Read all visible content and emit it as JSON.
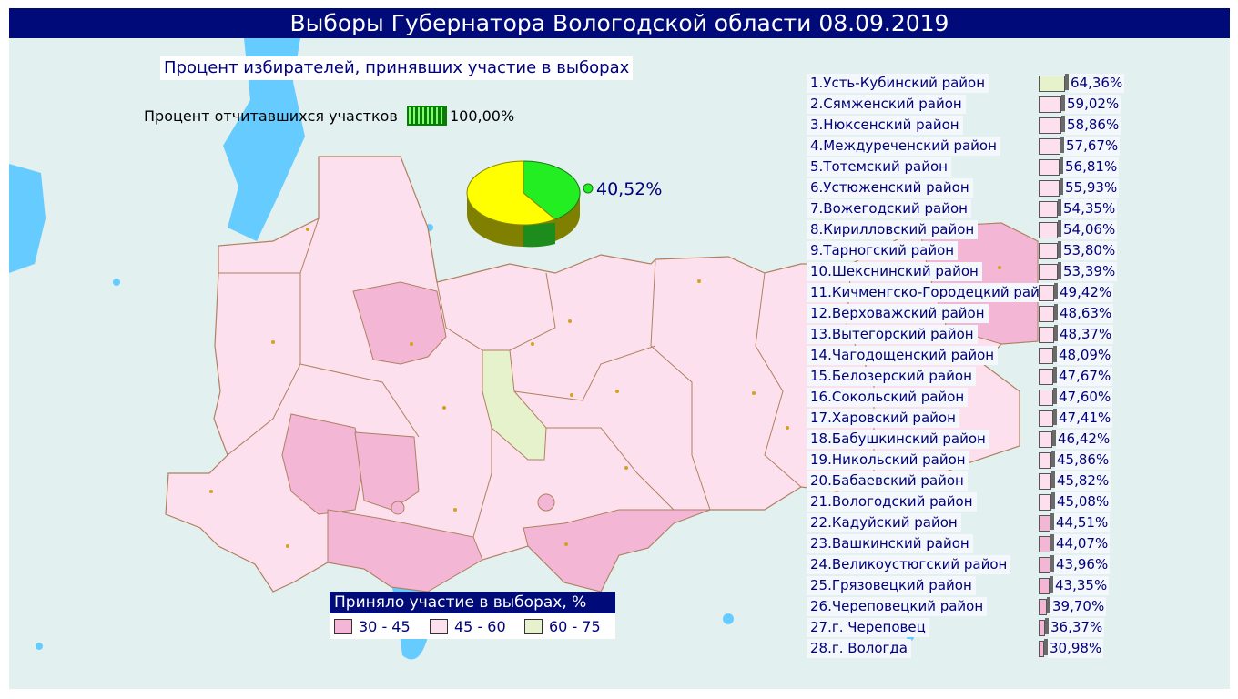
{
  "title": "Выборы Губернатора Вологодской области 08.09.2019",
  "subtitle": "Процент избирателей, принявших участие в выборах",
  "reporting": {
    "label": "Процент отчитавшихся участков",
    "value": "100,00%"
  },
  "turnout": {
    "value": "40,52%",
    "fraction": 0.4052
  },
  "colors": {
    "water": "#66ccff",
    "band_30_45": "#f3b6d5",
    "band_45_60": "#fde0ee",
    "band_60_75": "#e6f2cc",
    "title_bg": "#000a78"
  },
  "legend": {
    "title": "Приняло участие в выборах, %",
    "items": [
      {
        "label": "30 - 45",
        "color": "#f3b6d5"
      },
      {
        "label": "45 - 60",
        "color": "#fde0ee"
      },
      {
        "label": "60 - 75",
        "color": "#e6f2cc"
      }
    ]
  },
  "districts": [
    {
      "name": "1.Усть-Кубинский район",
      "value": "64,36%",
      "pct": 64.36
    },
    {
      "name": "2.Сямженский район",
      "value": "59,02%",
      "pct": 59.02
    },
    {
      "name": "3.Нюксенский район",
      "value": "58,86%",
      "pct": 58.86
    },
    {
      "name": "4.Междуреченский район",
      "value": "57,67%",
      "pct": 57.67
    },
    {
      "name": "5.Тотемский район",
      "value": "56,81%",
      "pct": 56.81
    },
    {
      "name": "6.Устюженский район",
      "value": "55,93%",
      "pct": 55.93
    },
    {
      "name": "7.Вожегодский район",
      "value": "54,35%",
      "pct": 54.35
    },
    {
      "name": "8.Кирилловский район",
      "value": "54,06%",
      "pct": 54.06
    },
    {
      "name": "9.Тарногский район",
      "value": "53,80%",
      "pct": 53.8
    },
    {
      "name": "10.Шекснинский район",
      "value": "53,39%",
      "pct": 53.39
    },
    {
      "name": "11.Кичменгско-Городецкий район",
      "value": "49,42%",
      "pct": 49.42
    },
    {
      "name": "12.Верховажский район",
      "value": "48,63%",
      "pct": 48.63
    },
    {
      "name": "13.Вытегорский район",
      "value": "48,37%",
      "pct": 48.37
    },
    {
      "name": "14.Чагодощенский район",
      "value": "48,09%",
      "pct": 48.09
    },
    {
      "name": "15.Белозерский район",
      "value": "47,67%",
      "pct": 47.67
    },
    {
      "name": "16.Сокольский район",
      "value": "47,60%",
      "pct": 47.6
    },
    {
      "name": "17.Харовский район",
      "value": "47,41%",
      "pct": 47.41
    },
    {
      "name": "18.Бабушкинский район",
      "value": "46,42%",
      "pct": 46.42
    },
    {
      "name": "19.Никольский район",
      "value": "45,86%",
      "pct": 45.86
    },
    {
      "name": "20.Бабаевский район",
      "value": "45,82%",
      "pct": 45.82
    },
    {
      "name": "21.Вологодский район",
      "value": "45,08%",
      "pct": 45.08
    },
    {
      "name": "22.Кадуйский район",
      "value": "44,51%",
      "pct": 44.51
    },
    {
      "name": "23.Вашкинский район",
      "value": "44,07%",
      "pct": 44.07
    },
    {
      "name": "24.Великоустюгский район",
      "value": "43,96%",
      "pct": 43.96
    },
    {
      "name": "25.Грязовецкий район",
      "value": "43,35%",
      "pct": 43.35
    },
    {
      "name": "26.Череповецкий район",
      "value": "39,70%",
      "pct": 39.7
    },
    {
      "name": "27.г. Череповец",
      "value": "36,37%",
      "pct": 36.37
    },
    {
      "name": "28.г. Вологда",
      "value": "30,98%",
      "pct": 30.98
    }
  ]
}
